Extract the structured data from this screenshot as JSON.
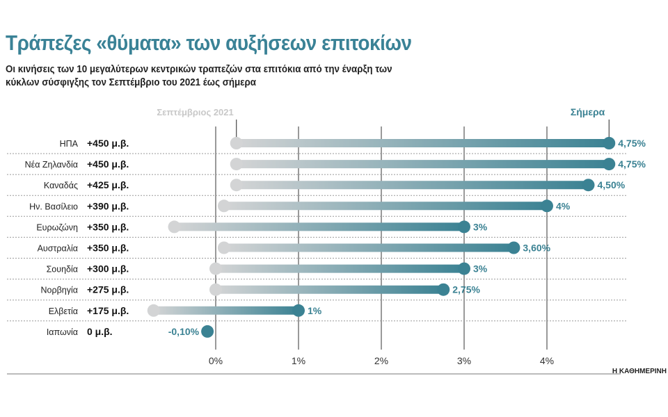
{
  "title": "Τράπεζες «θύματα» των αυξήσεων επιτοκίων",
  "subtitle": "Οι κινήσεις των 10 μεγαλύτερων κεντρικών τραπεζών στα επιτόκια από την έναρξη των κύκλων σύσφιγξης τον Σεπτέμβριο του 2021 έως σήμερα",
  "source": "Η ΚΑΘΗΜΕΡΙΝΗ",
  "colors": {
    "start": "#d3d4d5",
    "end": "#3b8293",
    "title": "#3a8296"
  },
  "chart_data": {
    "type": "dumbbell",
    "start_label": "Σεπτέμβριος 2021",
    "end_label": "Σήμερα",
    "xlim": [
      -0.8,
      4.9
    ],
    "xticks": [
      0,
      1,
      2,
      3,
      4
    ],
    "xtick_labels": [
      "0%",
      "1%",
      "2%",
      "3%",
      "4%"
    ],
    "grid": "vertical",
    "rows": [
      {
        "country": "ΗΠΑ",
        "change": "+450 μ.β.",
        "start": 0.25,
        "end": 4.75,
        "end_label": "4,75%"
      },
      {
        "country": "Νέα Ζηλανδία",
        "change": "+450 μ.β.",
        "start": 0.25,
        "end": 4.75,
        "end_label": "4,75%"
      },
      {
        "country": "Καναδάς",
        "change": "+425 μ.β.",
        "start": 0.25,
        "end": 4.5,
        "end_label": "4,50%"
      },
      {
        "country": "Ην. Βασίλειο",
        "change": "+390 μ.β.",
        "start": 0.1,
        "end": 4.0,
        "end_label": "4%"
      },
      {
        "country": "Ευρωζώνη",
        "change": "+350 μ.β.",
        "start": -0.5,
        "end": 3.0,
        "end_label": "3%"
      },
      {
        "country": "Αυστραλία",
        "change": "+350 μ.β.",
        "start": 0.1,
        "end": 3.6,
        "end_label": "3,60%"
      },
      {
        "country": "Σουηδία",
        "change": "+300 μ.β.",
        "start": 0,
        "end": 3.0,
        "end_label": "3%"
      },
      {
        "country": "Νορβηγία",
        "change": "+275 μ.β.",
        "start": 0,
        "end": 2.75,
        "end_label": "2,75%"
      },
      {
        "country": "Ελβετία",
        "change": "+175 μ.β.",
        "start": -0.75,
        "end": 1.0,
        "end_label": "1%"
      },
      {
        "country": "Ιαπωνία",
        "change": "0 μ.β.",
        "start": -0.1,
        "end": -0.1,
        "end_label": "-0,10%"
      }
    ]
  }
}
